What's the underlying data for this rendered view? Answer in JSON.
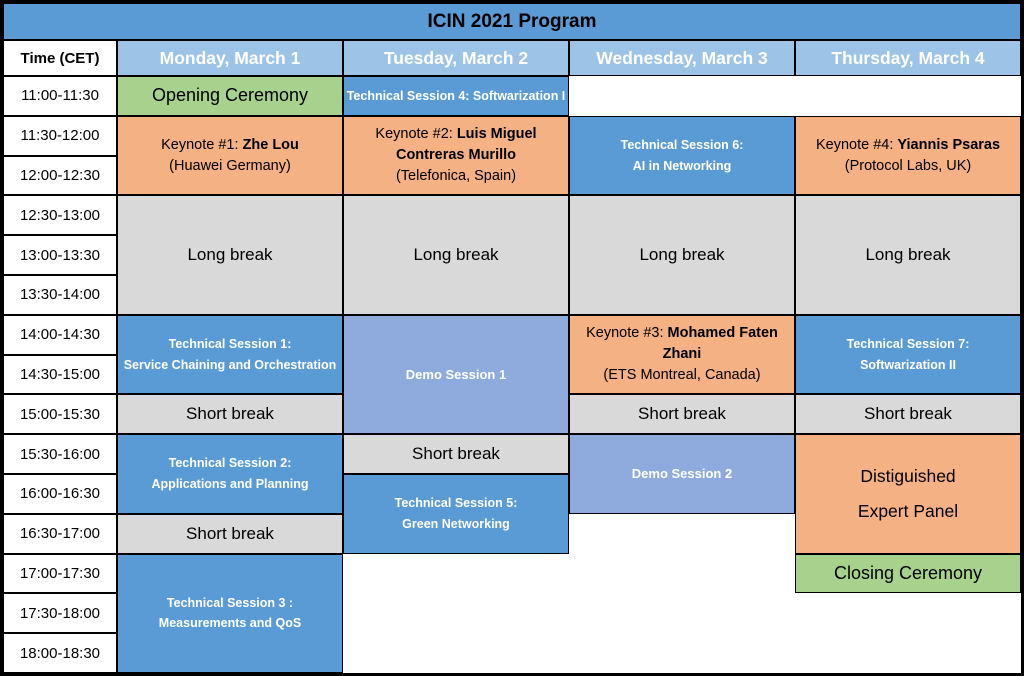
{
  "title": "ICIN 2021 Program",
  "colors": {
    "title_bg": "#5B9BD5",
    "day_header_bg": "#9DC3E6",
    "session_bg": "#5B9BD5",
    "demo_bg": "#8FAADC",
    "keynote_bg": "#F4B183",
    "ceremony_bg": "#A9D18E",
    "break_bg": "#D9D9D9",
    "border": "#000000",
    "header_text": "#FFFFFF",
    "session_text": "#FFFFFF",
    "body_text": "#000000"
  },
  "columns": {
    "time_header": "Time (CET)",
    "days": [
      "Monday, March 1",
      "Tuesday, March 2",
      "Wednesday, March 3",
      "Thursday, March 4"
    ]
  },
  "time_slots": [
    "11:00-11:30",
    "11:30-12:00",
    "12:00-12:30",
    "12:30-13:00",
    "13:00-13:30",
    "13:30-14:00",
    "14:00-14:30",
    "14:30-15:00",
    "15:00-15:30",
    "15:30-16:00",
    "16:00-16:30",
    "16:30-17:00",
    "17:00-17:30",
    "17:30-18:00",
    "18:00-18:30"
  ],
  "events": [
    {
      "name": "opening-ceremony",
      "day": 0,
      "slot": 0,
      "span": 1,
      "type": "ceremony",
      "lines": [
        [
          {
            "t": "Opening Ceremony"
          }
        ]
      ]
    },
    {
      "name": "keynote-1",
      "day": 0,
      "slot": 1,
      "span": 2,
      "type": "keynote",
      "lines": [
        [
          {
            "t": "Keynote #1: "
          },
          {
            "t": "Zhe Lou",
            "b": true
          }
        ],
        [
          {
            "t": "(Huawei Germany)"
          }
        ]
      ]
    },
    {
      "name": "long-break-monday",
      "day": 0,
      "slot": 3,
      "span": 3,
      "type": "break",
      "lines": [
        [
          {
            "t": "Long break"
          }
        ]
      ]
    },
    {
      "name": "technical-session-1",
      "day": 0,
      "slot": 6,
      "span": 2,
      "type": "session",
      "lines": [
        [
          {
            "t": "Technical Session 1:"
          }
        ],
        [
          {
            "t": "Service Chaining and Orchestration"
          }
        ]
      ]
    },
    {
      "name": "short-break-monday-1",
      "day": 0,
      "slot": 8,
      "span": 1,
      "type": "break",
      "lines": [
        [
          {
            "t": "Short break"
          }
        ]
      ]
    },
    {
      "name": "technical-session-2",
      "day": 0,
      "slot": 9,
      "span": 2,
      "type": "session",
      "lines": [
        [
          {
            "t": "Technical Session 2:"
          }
        ],
        [
          {
            "t": "Applications and Planning"
          }
        ]
      ]
    },
    {
      "name": "short-break-monday-2",
      "day": 0,
      "slot": 11,
      "span": 1,
      "type": "break",
      "lines": [
        [
          {
            "t": "Short break"
          }
        ]
      ]
    },
    {
      "name": "technical-session-3",
      "day": 0,
      "slot": 12,
      "span": 3,
      "type": "session",
      "lines": [
        [
          {
            "t": "Technical Session 3 :"
          }
        ],
        [
          {
            "t": "Measurements and QoS"
          }
        ]
      ]
    },
    {
      "name": "technical-session-4",
      "day": 1,
      "slot": 0,
      "span": 1,
      "type": "session",
      "lines": [
        [
          {
            "t": "Technical Session 4: Softwarization I"
          }
        ]
      ]
    },
    {
      "name": "keynote-2",
      "day": 1,
      "slot": 1,
      "span": 2,
      "type": "keynote",
      "lines": [
        [
          {
            "t": "Keynote #2: "
          },
          {
            "t": "Luis Miguel",
            "b": true
          }
        ],
        [
          {
            "t": "Contreras Murillo",
            "b": true
          }
        ],
        [
          {
            "t": "(Telefonica, Spain)"
          }
        ]
      ]
    },
    {
      "name": "long-break-tuesday",
      "day": 1,
      "slot": 3,
      "span": 3,
      "type": "break",
      "lines": [
        [
          {
            "t": "Long break"
          }
        ]
      ]
    },
    {
      "name": "demo-session-1",
      "day": 1,
      "slot": 6,
      "span": 3,
      "type": "demo",
      "lines": [
        [
          {
            "t": "Demo Session 1"
          }
        ]
      ]
    },
    {
      "name": "short-break-tuesday",
      "day": 1,
      "slot": 9,
      "span": 1,
      "type": "break",
      "lines": [
        [
          {
            "t": "Short break"
          }
        ]
      ]
    },
    {
      "name": "technical-session-5",
      "day": 1,
      "slot": 10,
      "span": 2,
      "type": "session",
      "lines": [
        [
          {
            "t": "Technical Session 5:"
          }
        ],
        [
          {
            "t": "Green Networking"
          }
        ]
      ]
    },
    {
      "name": "technical-session-6",
      "day": 2,
      "slot": 1,
      "span": 2,
      "type": "session",
      "lines": [
        [
          {
            "t": "Technical Session 6:"
          }
        ],
        [
          {
            "t": "AI in Networking"
          }
        ]
      ]
    },
    {
      "name": "long-break-wednesday",
      "day": 2,
      "slot": 3,
      "span": 3,
      "type": "break",
      "lines": [
        [
          {
            "t": "Long break"
          }
        ]
      ]
    },
    {
      "name": "keynote-3",
      "day": 2,
      "slot": 6,
      "span": 2,
      "type": "keynote",
      "lines": [
        [
          {
            "t": "Keynote #3: "
          },
          {
            "t": "Mohamed Faten",
            "b": true
          }
        ],
        [
          {
            "t": "Zhani",
            "b": true
          }
        ],
        [
          {
            "t": "(ETS Montreal, Canada)"
          }
        ]
      ]
    },
    {
      "name": "short-break-wednesday",
      "day": 2,
      "slot": 8,
      "span": 1,
      "type": "break",
      "lines": [
        [
          {
            "t": "Short break"
          }
        ]
      ]
    },
    {
      "name": "demo-session-2",
      "day": 2,
      "slot": 9,
      "span": 2,
      "type": "demo",
      "lines": [
        [
          {
            "t": "Demo Session 2"
          }
        ]
      ]
    },
    {
      "name": "keynote-4",
      "day": 3,
      "slot": 1,
      "span": 2,
      "type": "keynote",
      "lines": [
        [
          {
            "t": "Keynote #4: "
          },
          {
            "t": "Yiannis Psaras",
            "b": true
          }
        ],
        [
          {
            "t": "(Protocol Labs, UK)"
          }
        ]
      ]
    },
    {
      "name": "long-break-thursday",
      "day": 3,
      "slot": 3,
      "span": 3,
      "type": "break",
      "lines": [
        [
          {
            "t": "Long break"
          }
        ]
      ]
    },
    {
      "name": "technical-session-7",
      "day": 3,
      "slot": 6,
      "span": 2,
      "type": "session",
      "lines": [
        [
          {
            "t": "Technical Session 7:"
          }
        ],
        [
          {
            "t": "Softwarization II"
          }
        ]
      ]
    },
    {
      "name": "short-break-thursday",
      "day": 3,
      "slot": 8,
      "span": 1,
      "type": "break",
      "lines": [
        [
          {
            "t": "Short break"
          }
        ]
      ]
    },
    {
      "name": "distinguished-expert-panel",
      "day": 3,
      "slot": 9,
      "span": 3,
      "type": "panel",
      "lines": [
        [
          {
            "t": "Distiguished"
          }
        ],
        [
          {
            "t": "Expert Panel"
          }
        ]
      ]
    },
    {
      "name": "closing-ceremony",
      "day": 3,
      "slot": 12,
      "span": 1,
      "type": "ceremony",
      "lines": [
        [
          {
            "t": "Closing Ceremony"
          }
        ]
      ]
    }
  ]
}
